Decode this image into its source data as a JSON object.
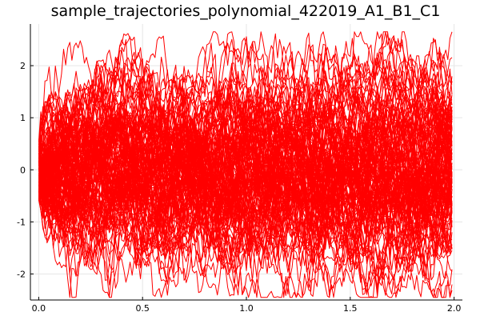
{
  "chart_data": {
    "type": "line",
    "title": "sample_trajectories_polynomial_422019_A1_B1_C1",
    "xlabel": "",
    "ylabel": "",
    "xlim": [
      -0.04,
      2.04
    ],
    "ylim": [
      -2.5,
      2.8
    ],
    "x_ticks": [
      0.0,
      0.5,
      1.0,
      1.5,
      2.0
    ],
    "x_tick_labels": [
      "0.0",
      "0.5",
      "1.0",
      "1.5",
      "2.0"
    ],
    "y_ticks": [
      -2,
      -1,
      0,
      1,
      2
    ],
    "y_tick_labels": [
      "-2",
      "-1",
      "0",
      "1",
      "2"
    ],
    "grid": true,
    "legend": "none",
    "line_color": "#ff0000",
    "x_range": [
      0.0,
      1.99
    ],
    "trajectory_count": 120,
    "point_count": 200,
    "value_envelope": {
      "typical_range": [
        -1.6,
        1.6
      ],
      "max": 2.65,
      "min": -2.45
    }
  }
}
